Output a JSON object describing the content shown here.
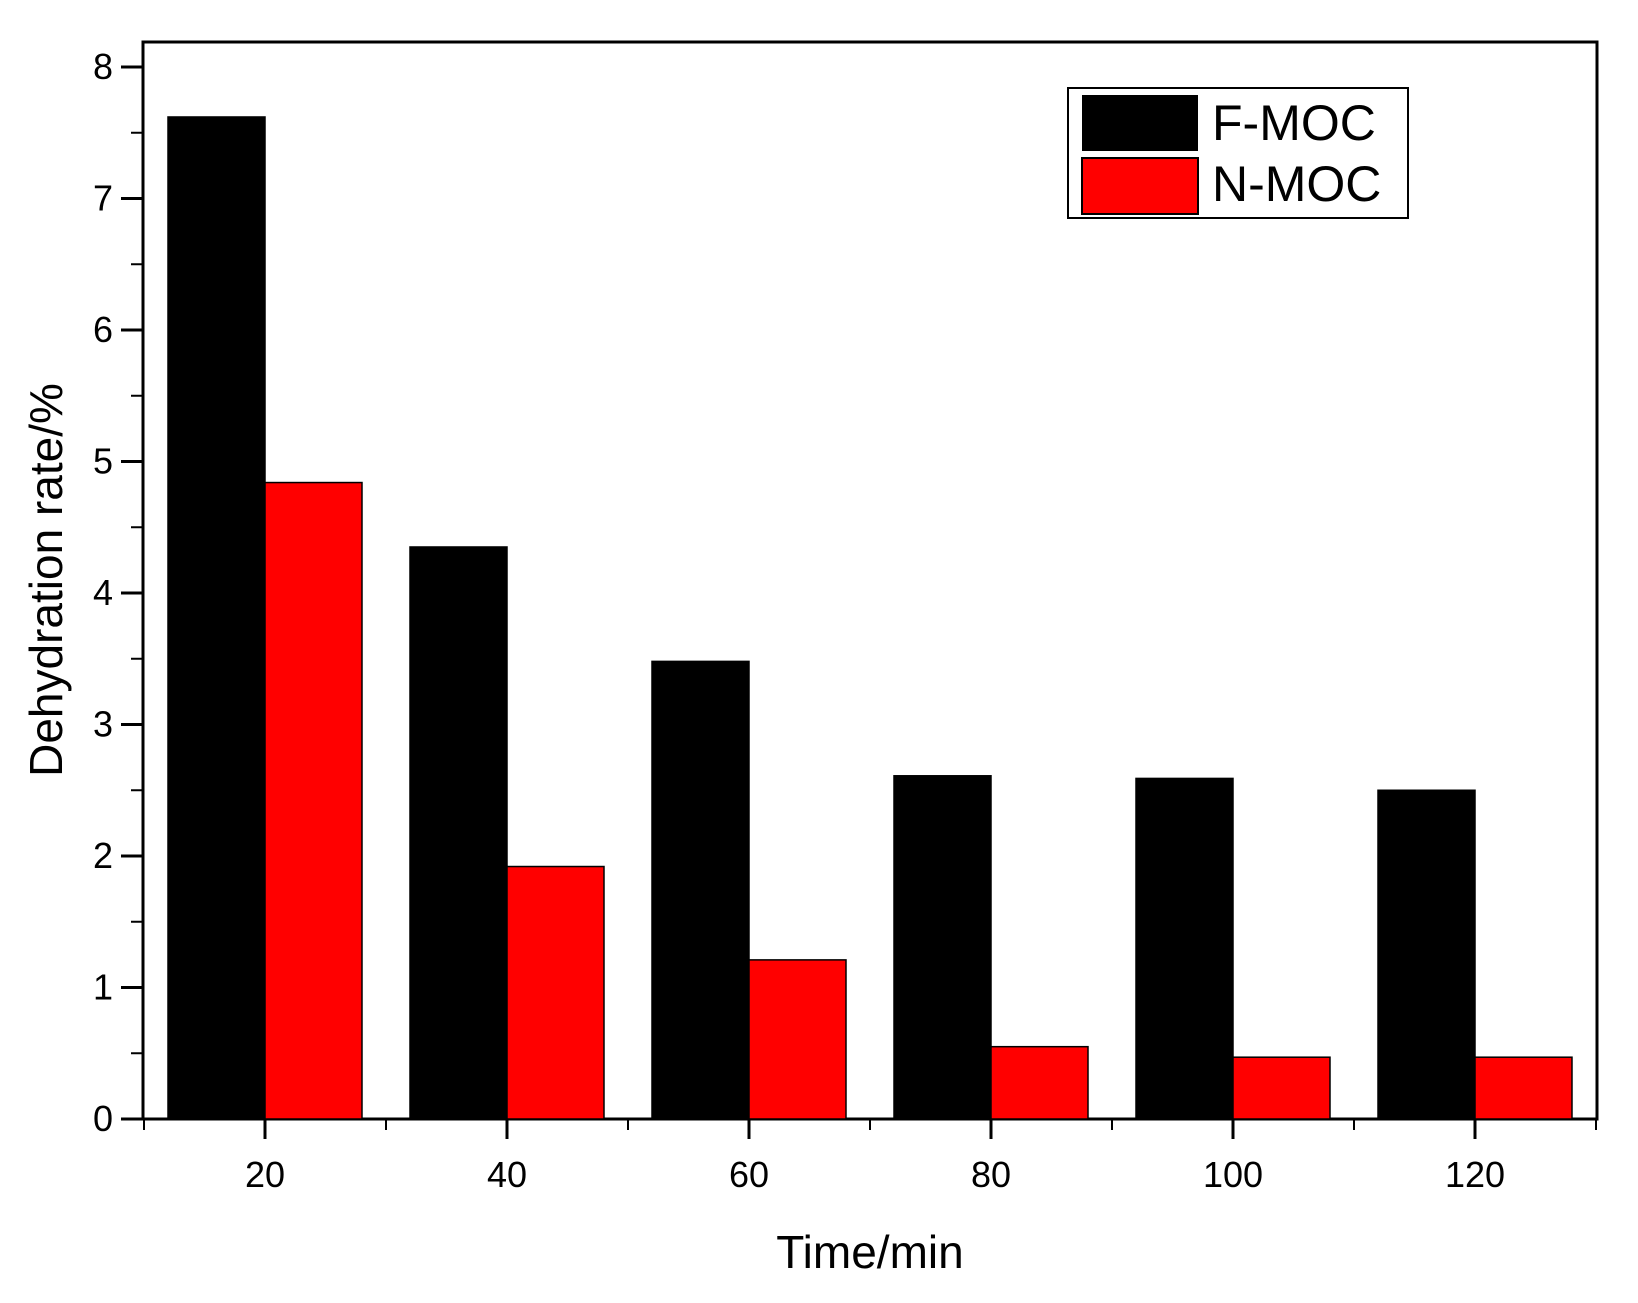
{
  "chart_data": {
    "type": "bar",
    "xlabel": "Time/min",
    "ylabel": "Dehydration rate/%",
    "categories": [
      "20",
      "40",
      "60",
      "80",
      "100",
      "120"
    ],
    "series": [
      {
        "name": "F-MOC",
        "values": [
          7.62,
          4.35,
          3.48,
          2.61,
          2.59,
          2.5
        ],
        "color": "#000000"
      },
      {
        "name": "N-MOC",
        "values": [
          4.84,
          1.92,
          1.21,
          0.55,
          0.47,
          0.47
        ],
        "color": "#ff0000"
      }
    ],
    "ylim": [
      0,
      8
    ],
    "yticks": [
      0,
      1,
      2,
      3,
      4,
      5,
      6,
      7,
      8
    ],
    "grid": false,
    "legend_position": "top-right"
  }
}
